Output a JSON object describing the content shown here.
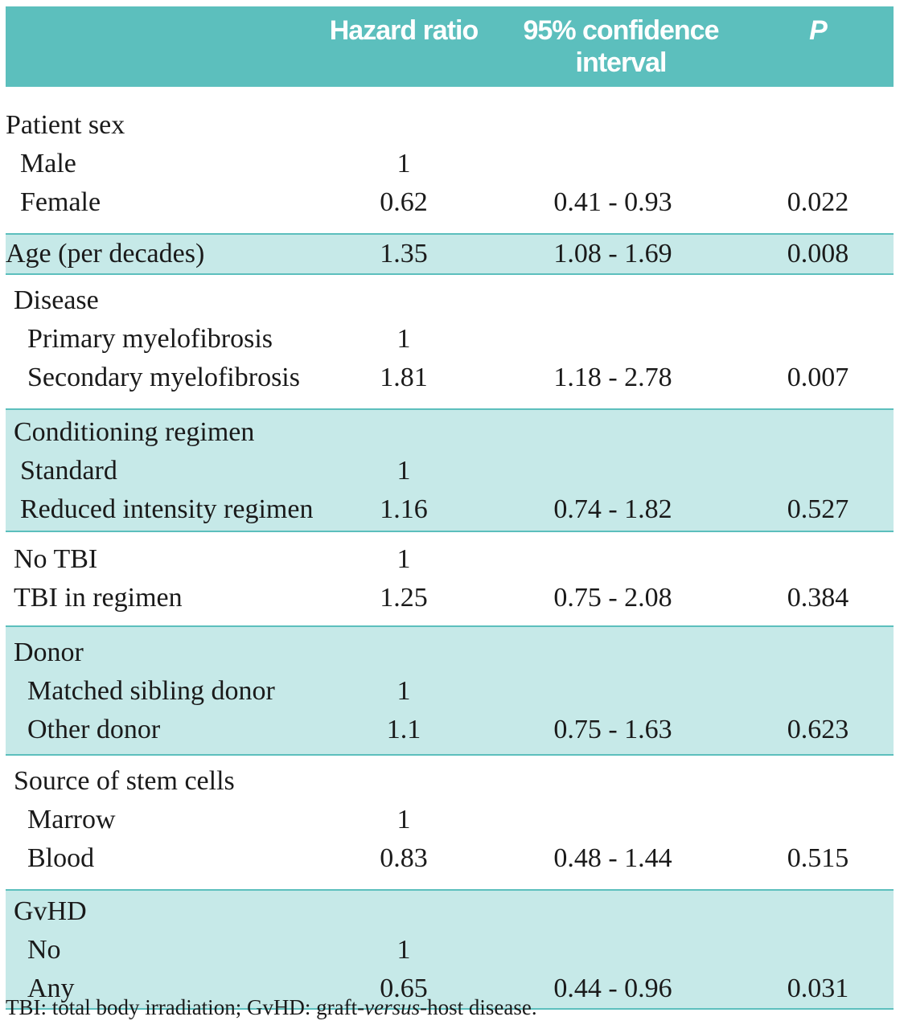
{
  "header": {
    "hazard_ratio": "Hazard ratio",
    "ci_line1": "95% confidence",
    "ci_line2": "interval",
    "p": "P"
  },
  "groups": {
    "patient_sex": {
      "title": "Patient sex",
      "rows": [
        {
          "label": "Male",
          "hr": "1",
          "ci": "",
          "p": ""
        },
        {
          "label": "Female",
          "hr": "0.62",
          "ci": "0.41 - 0.93",
          "p": "0.022"
        }
      ]
    },
    "age": {
      "title": "Age (per decades)",
      "hr": "1.35",
      "ci": "1.08 - 1.69",
      "p": "0.008"
    },
    "disease": {
      "title": "Disease",
      "rows": [
        {
          "label": "Primary myelofibrosis",
          "hr": "1",
          "ci": "",
          "p": ""
        },
        {
          "label": "Secondary myelofibrosis",
          "hr": "1.81",
          "ci": "1.18 - 2.78",
          "p": "0.007"
        }
      ]
    },
    "conditioning": {
      "title": "Conditioning regimen",
      "rows": [
        {
          "label": "Standard",
          "hr": "1",
          "ci": "",
          "p": ""
        },
        {
          "label": "Reduced intensity regimen",
          "hr": "1.16",
          "ci": "0.74 - 1.82",
          "p": "0.527"
        }
      ]
    },
    "tbi": {
      "rows": [
        {
          "label": "No TBI",
          "hr": "1",
          "ci": "",
          "p": ""
        },
        {
          "label": "TBI in regimen",
          "hr": "1.25",
          "ci": "0.75 - 2.08",
          "p": "0.384"
        }
      ]
    },
    "donor": {
      "title": "Donor",
      "rows": [
        {
          "label": "Matched sibling donor",
          "hr": "1",
          "ci": "",
          "p": ""
        },
        {
          "label": "Other donor",
          "hr": "1.1",
          "ci": "0.75 - 1.63",
          "p": "0.623"
        }
      ]
    },
    "source": {
      "title": "Source of stem cells",
      "rows": [
        {
          "label": "Marrow",
          "hr": "1",
          "ci": "",
          "p": ""
        },
        {
          "label": "Blood",
          "hr": "0.83",
          "ci": "0.48 - 1.44",
          "p": "0.515"
        }
      ]
    },
    "gvhd": {
      "title": "GvHD",
      "rows": [
        {
          "label": "No",
          "hr": "1",
          "ci": "",
          "p": ""
        },
        {
          "label": "Any",
          "hr": "0.65",
          "ci": "0.44 - 0.96",
          "p": "0.031"
        }
      ]
    }
  },
  "footnote": {
    "part1": "TBI: total body irradiation; GvHD: graft-",
    "part2": "versus",
    "part3": "-host disease."
  },
  "colors": {
    "header_bg": "#5cbfbd",
    "shade_bg": "#c6e9e8",
    "rule": "#5cbfbd"
  }
}
